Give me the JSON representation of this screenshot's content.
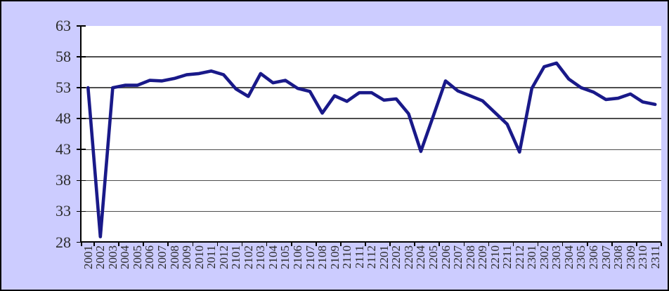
{
  "window": {
    "background": "#ccccff",
    "border_color": "#000000"
  },
  "chart_data": {
    "type": "line",
    "title": "",
    "xlabel": "",
    "ylabel": "",
    "categories": [
      "2001",
      "2002",
      "2003",
      "2004",
      "2005",
      "2006",
      "2007",
      "2008",
      "2009",
      "2010",
      "2011",
      "2012",
      "2101",
      "2102",
      "2103",
      "2104",
      "2105",
      "2106",
      "2107",
      "2108",
      "2109",
      "2110",
      "2111",
      "2112",
      "2201",
      "2202",
      "2203",
      "2204",
      "2205",
      "2206",
      "2207",
      "2208",
      "2209",
      "2210",
      "2211",
      "2212",
      "2301",
      "2302",
      "2303",
      "2304",
      "2305",
      "2306",
      "2307",
      "2308",
      "2309",
      "2310",
      "2311"
    ],
    "values": [
      53.0,
      28.9,
      53.0,
      53.4,
      53.4,
      54.2,
      54.1,
      54.5,
      55.1,
      55.3,
      55.7,
      55.1,
      52.8,
      51.6,
      55.3,
      53.8,
      54.2,
      52.9,
      52.4,
      48.9,
      51.7,
      50.8,
      52.2,
      52.2,
      51.0,
      51.2,
      48.8,
      42.7,
      48.4,
      54.1,
      52.5,
      51.7,
      50.9,
      49.0,
      47.1,
      42.6,
      52.9,
      56.4,
      57.0,
      54.4,
      53.0,
      52.3,
      51.1,
      51.3,
      52.0,
      50.7,
      50.3
    ],
    "ylim": [
      28,
      63
    ],
    "yticks": [
      28,
      33,
      38,
      43,
      48,
      53,
      58,
      63
    ],
    "xtick_label_rotation": -90,
    "xtick_mark_interval": 2,
    "grid": "horizontal-major",
    "legend": "none",
    "colors": {
      "line": "#191989",
      "plot_background": "#ffffff",
      "canvas_background": "#ccccff",
      "gridline": "#4d4d4d",
      "axis": "#000000",
      "tick_label": "#2b2b2b"
    }
  }
}
